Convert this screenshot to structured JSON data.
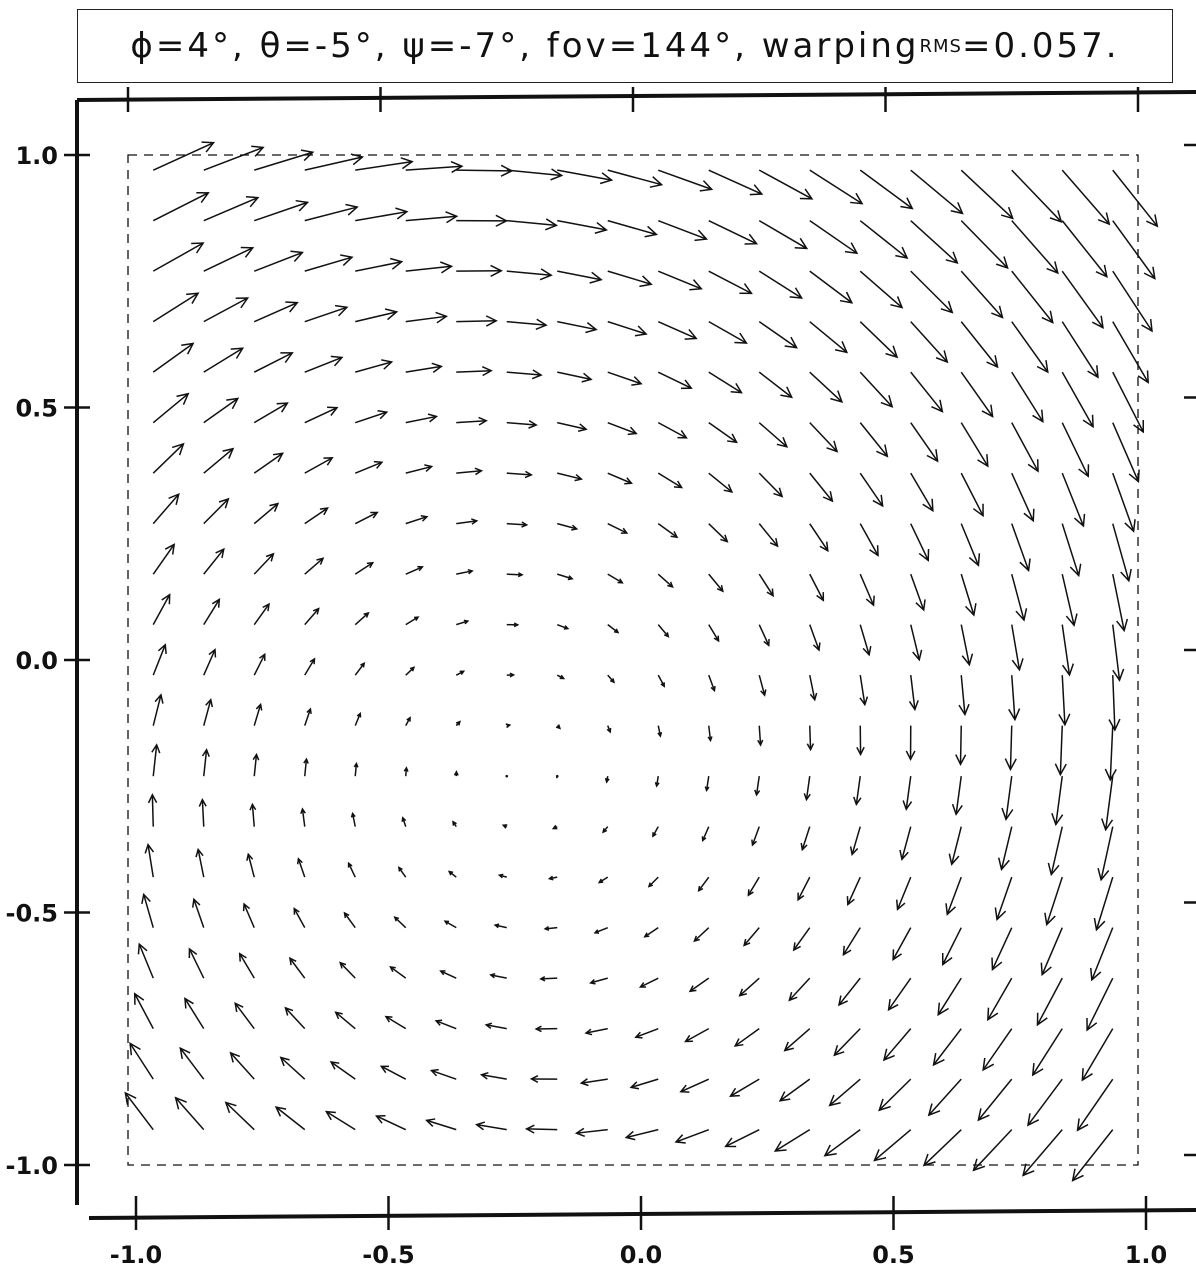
{
  "title": {
    "main": "ϕ=4°, θ=-5°, ψ=-7°, fov=144°, warping",
    "subscript": "RMS",
    "tail": "=0.057."
  },
  "chart_data": {
    "type": "quiver",
    "xlim": [
      -1.0,
      1.0
    ],
    "ylim": [
      -1.0,
      1.0
    ],
    "x_ticks": [
      "-1.0",
      "-0.5",
      "0.0",
      "0.5",
      "1.0"
    ],
    "y_ticks": [
      "1.0",
      "0.5",
      "0.0",
      "-0.5",
      "-1.0"
    ],
    "grid": false,
    "legend": "none",
    "frame": "dashed square boundary from -1 to 1",
    "vector_field": {
      "grid_x": [
        -0.95,
        -0.85,
        -0.75,
        -0.65,
        -0.55,
        -0.45,
        -0.35,
        -0.25,
        -0.15,
        -0.05,
        0.05,
        0.15,
        0.25,
        0.35,
        0.45,
        0.55,
        0.65,
        0.75,
        0.85,
        0.95
      ],
      "grid_y": [
        0.97,
        0.87,
        0.77,
        0.67,
        0.57,
        0.47,
        0.37,
        0.27,
        0.17,
        0.07,
        -0.03,
        -0.13,
        -0.23,
        -0.33,
        -0.43,
        -0.53,
        -0.63,
        -0.73,
        -0.83,
        -0.93
      ],
      "center": [
        -0.22,
        -0.22
      ],
      "rotation_deg": -7,
      "rotation_note": "vectors circulate clockwise around the center, magnitude growing with distance",
      "max_arrow_length": 0.105,
      "ref_radius": 1.15
    }
  },
  "colors": {
    "ink": "#111111",
    "background": "#ffffff"
  }
}
